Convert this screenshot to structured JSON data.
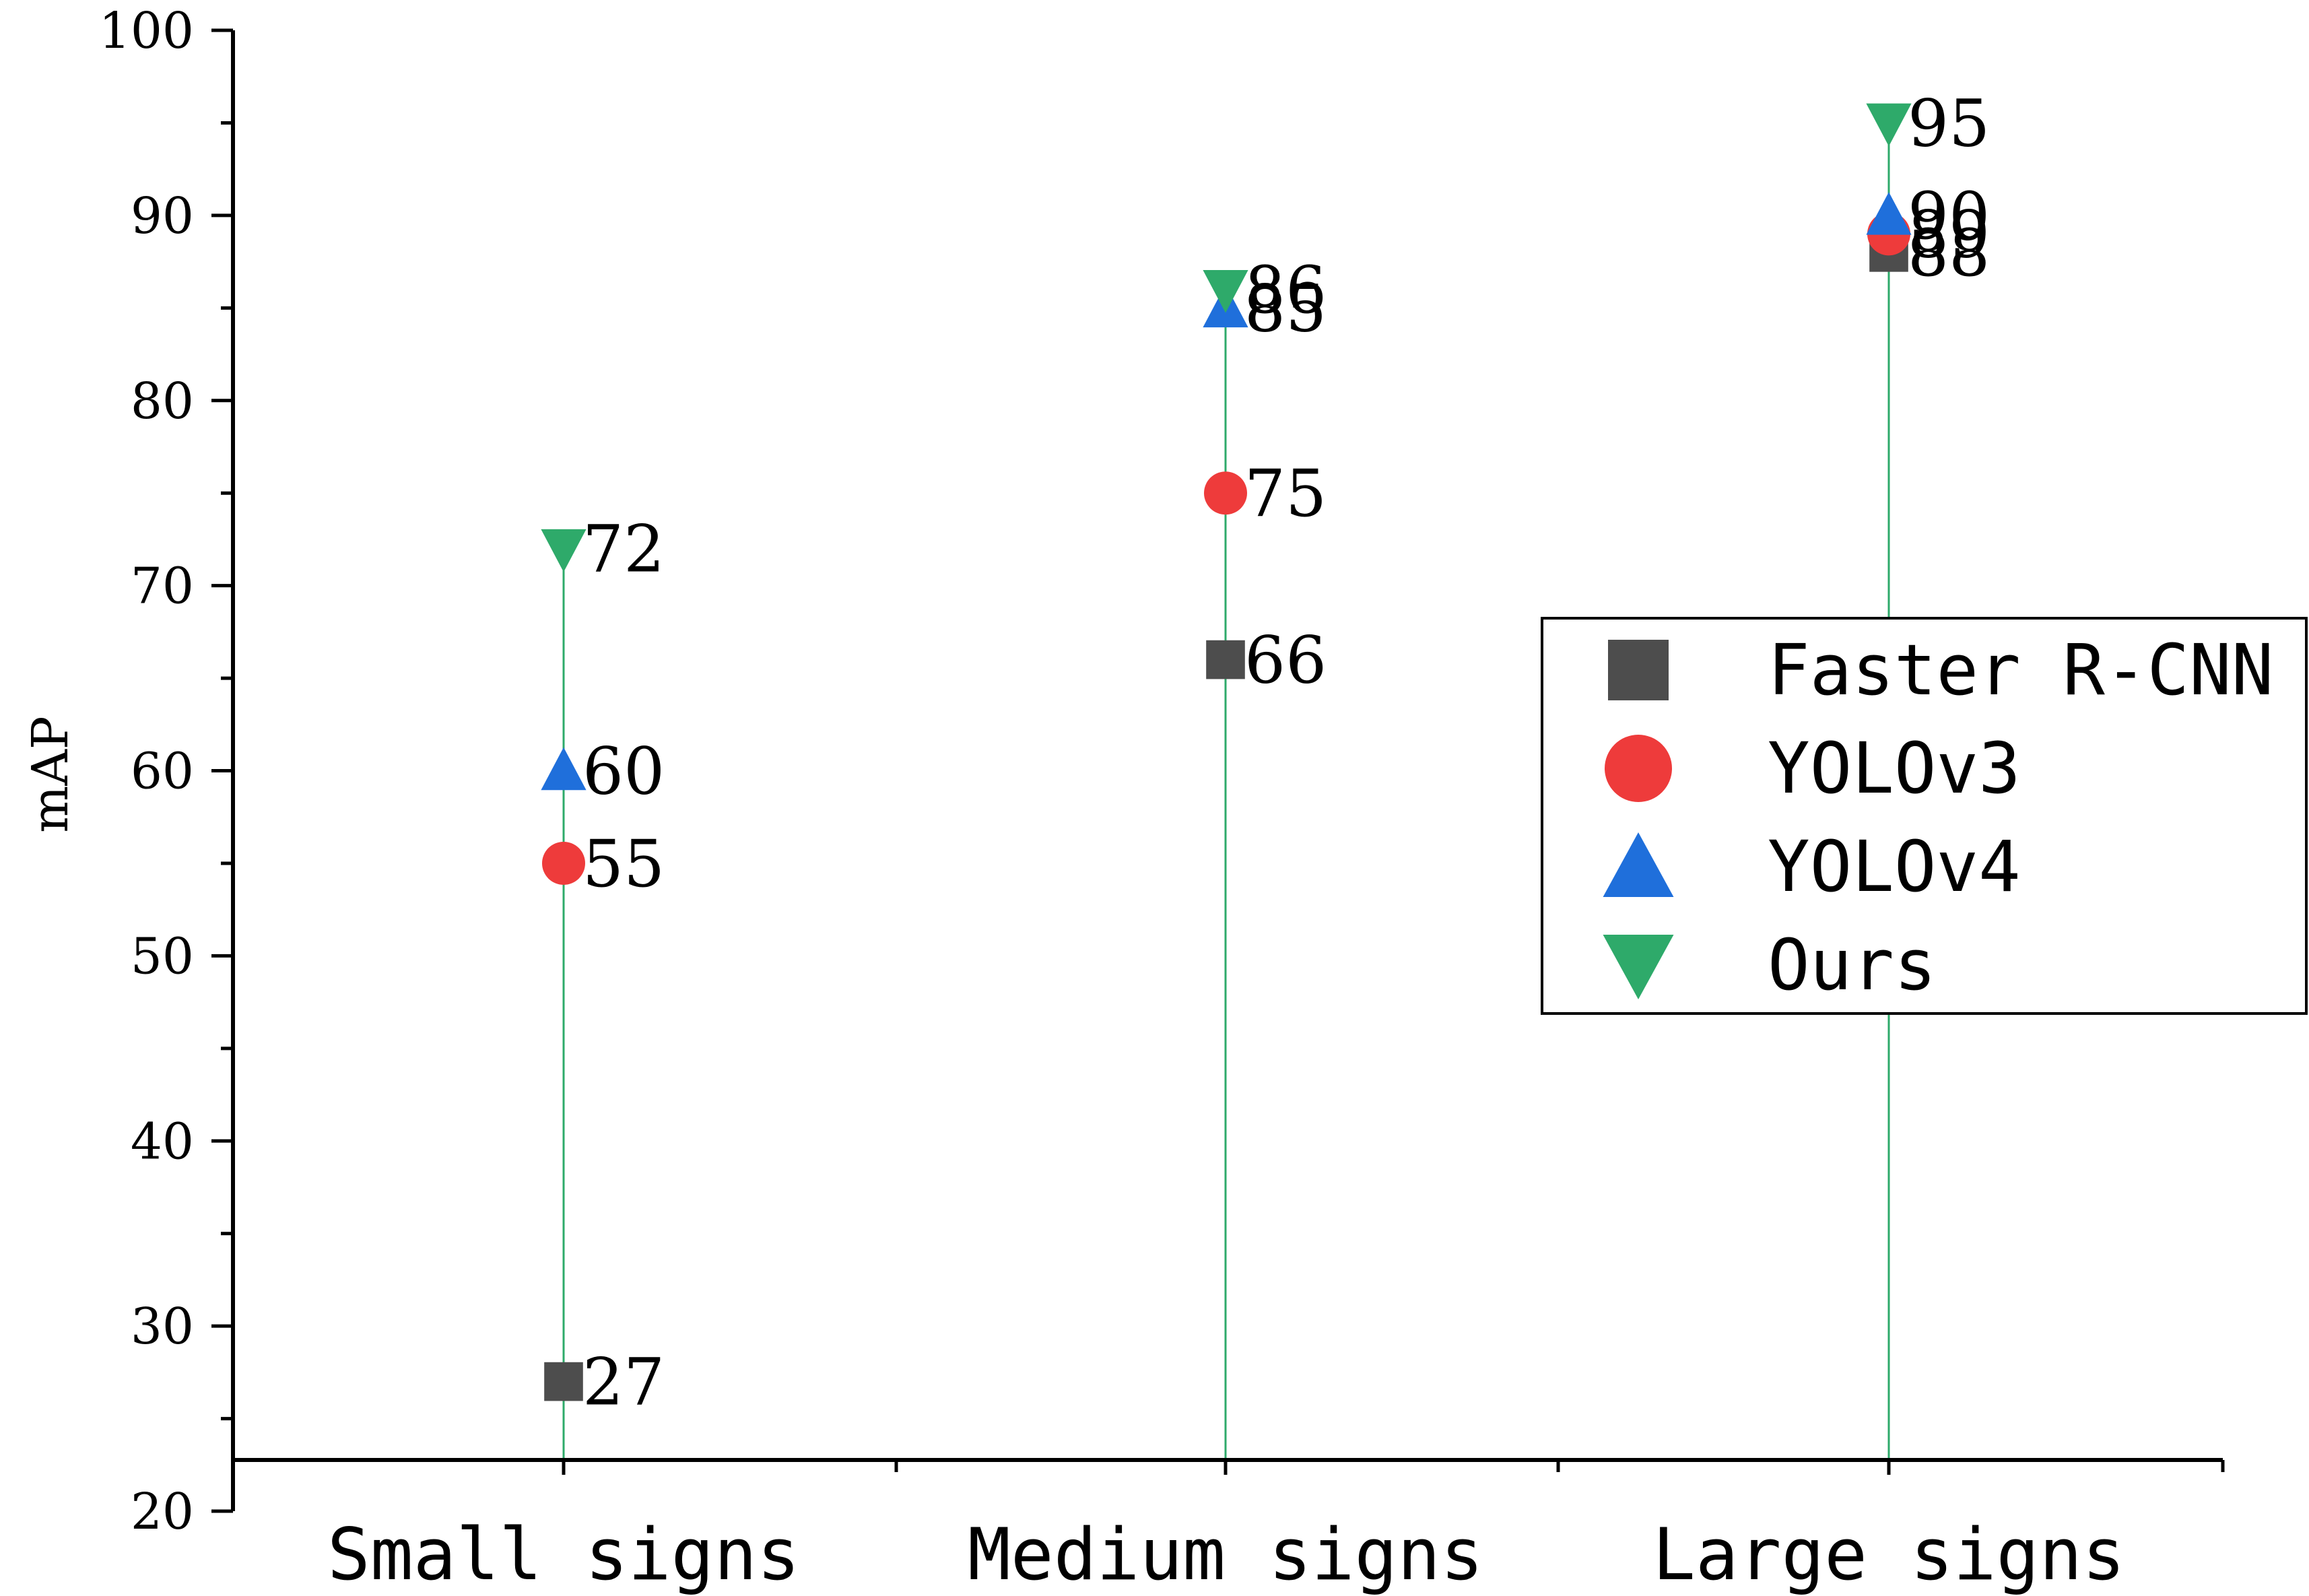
{
  "chart_data": {
    "type": "scatter",
    "title": "",
    "xlabel": "",
    "ylabel": "mAP",
    "categories": [
      "Small signs",
      "Medium signs",
      "Large signs"
    ],
    "ylim": [
      20,
      100
    ],
    "yticks": [
      20,
      30,
      40,
      50,
      60,
      70,
      80,
      90,
      100
    ],
    "grid": false,
    "legend_position": "right",
    "drop_lines": true,
    "series": [
      {
        "name": "Faster R-CNN",
        "marker": "square",
        "color": "#4d4d4d",
        "values": [
          27,
          66,
          88
        ]
      },
      {
        "name": "YOLOv3",
        "marker": "circle",
        "color": "#ee3b3b",
        "values": [
          55,
          75,
          89
        ]
      },
      {
        "name": "YOLOv4",
        "marker": "triangle-up",
        "color": "#1f6fdb",
        "values": [
          60,
          85,
          90
        ]
      },
      {
        "name": "Ours",
        "marker": "triangle-down",
        "color": "#2eaa6a",
        "values": [
          72,
          86,
          95
        ]
      }
    ],
    "drop_line_color": "#2eaa6a"
  }
}
